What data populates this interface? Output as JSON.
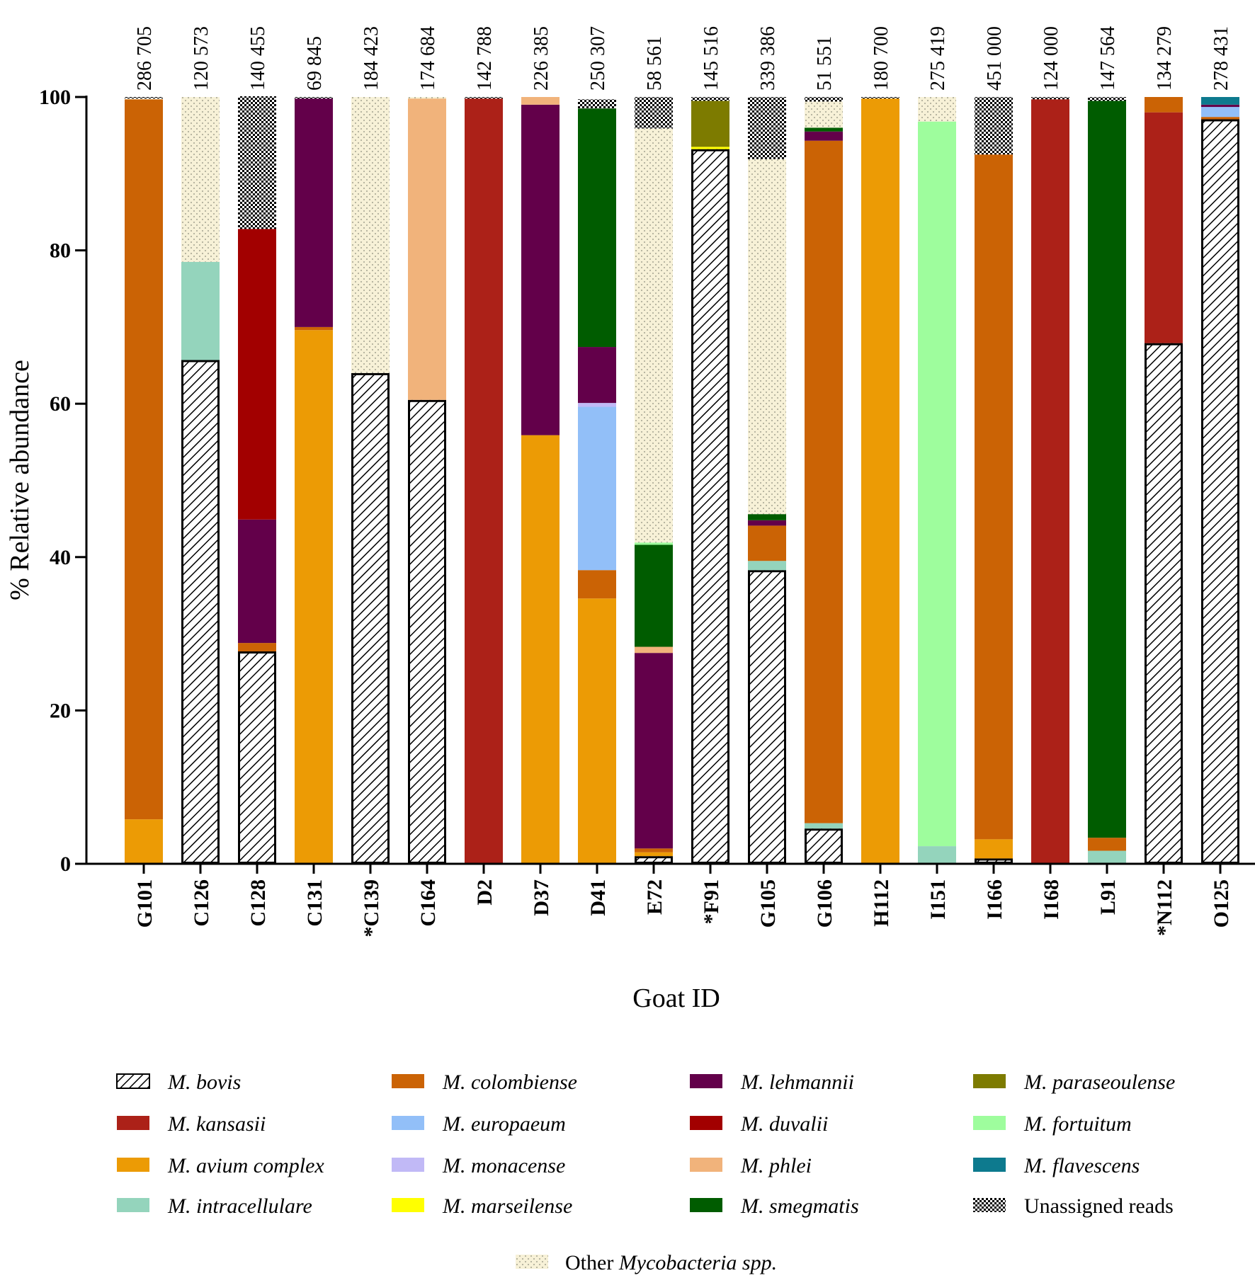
{
  "chart_data": {
    "type": "bar",
    "stacked": true,
    "title": "",
    "xlabel": "Goat ID",
    "ylabel": "% Relative abundance",
    "ylim": [
      0,
      100
    ],
    "yticks": [
      "0",
      "20",
      "40",
      "60",
      "80",
      "100"
    ],
    "categories": [
      "G101",
      "C126",
      "C128",
      "C131",
      "*C139",
      "C164",
      "D2",
      "D37",
      "D41",
      "E72",
      "*F91",
      "G105",
      "G106",
      "H112",
      "I151",
      "I166",
      "I168",
      "L91",
      "*N112",
      "O125"
    ],
    "read_counts": [
      "286 705",
      "120 573",
      "140 455",
      "69 845",
      "184 423",
      "174 684",
      "142 788",
      "226 385",
      "250 307",
      "58 561",
      "145 516",
      "339 386",
      "51 551",
      "180 700",
      "275 419",
      "451 000",
      "124 000",
      "147 564",
      "134 279",
      "278 431"
    ],
    "series": [
      {
        "name": "M. bovis",
        "key": "bovis",
        "color": "#ffffff",
        "pattern": "hatch",
        "values": [
          0,
          65.7,
          27.7,
          0,
          64.0,
          60.5,
          0,
          0,
          0,
          1.0,
          93.2,
          38.3,
          4.6,
          0,
          0,
          0.7,
          0,
          0,
          67.9,
          97.1
        ]
      },
      {
        "name": "M. kansasii",
        "key": "kansasii",
        "color": "#ac2118",
        "values": [
          0,
          0,
          0,
          0,
          0,
          0,
          99.8,
          0,
          0,
          0,
          0,
          0,
          0,
          0,
          0,
          0,
          99.7,
          0,
          30.1,
          0
        ]
      },
      {
        "name": "M. avium complex",
        "key": "avium",
        "color": "#ec9b05",
        "values": [
          5.8,
          0,
          0,
          69.6,
          0,
          0,
          0,
          55.9,
          34.6,
          0.5,
          0,
          0,
          0,
          99.8,
          0,
          2.5,
          0,
          0,
          0,
          0
        ]
      },
      {
        "name": "M. intracellulare",
        "key": "intracellulare",
        "color": "#94d4bc",
        "values": [
          0,
          12.8,
          0,
          0,
          0,
          0,
          0,
          0,
          0,
          0,
          0,
          1.2,
          0.7,
          0,
          2.3,
          0,
          0,
          1.7,
          0,
          0
        ]
      },
      {
        "name": "M. colombiense",
        "key": "colombiense",
        "color": "#cb6305",
        "values": [
          93.9,
          0,
          1.1,
          0.4,
          0,
          0,
          0,
          0,
          3.7,
          0.5,
          0,
          4.6,
          89.0,
          0,
          0,
          89.3,
          0,
          1.7,
          2.0,
          0.3
        ]
      },
      {
        "name": "M. europaeum",
        "key": "europaeum",
        "color": "#92bff8",
        "values": [
          0,
          0,
          0,
          0,
          0,
          0,
          0,
          0,
          21.3,
          0,
          0,
          0,
          0,
          0,
          0,
          0,
          0,
          0,
          0,
          1.3
        ]
      },
      {
        "name": "M. monacense",
        "key": "monacense",
        "color": "#c1b9f6",
        "values": [
          0,
          0,
          0,
          0,
          0,
          0,
          0,
          0,
          0.5,
          0,
          0,
          0,
          0,
          0,
          0,
          0,
          0,
          0,
          0,
          0
        ]
      },
      {
        "name": "M. marseilense",
        "key": "marseilense",
        "color": "#ffff00",
        "values": [
          0,
          0,
          0,
          0,
          0,
          0,
          0,
          0,
          0,
          0,
          0.3,
          0,
          0,
          0,
          0,
          0,
          0,
          0,
          0,
          0
        ]
      },
      {
        "name": "M. lehmannii",
        "key": "lehmannii",
        "color": "#63004a",
        "values": [
          0,
          0,
          16.1,
          29.8,
          0,
          0,
          0,
          43.1,
          7.3,
          25.5,
          0,
          0.7,
          1.2,
          0,
          0,
          0,
          0,
          0,
          0,
          0.3
        ]
      },
      {
        "name": "M. duvalii",
        "key": "duvalii",
        "color": "#a20000",
        "values": [
          0,
          0,
          37.9,
          0,
          0,
          0,
          0,
          0,
          0,
          0,
          0,
          0,
          0,
          0,
          0,
          0,
          0,
          0,
          0,
          0
        ]
      },
      {
        "name": "M. phlei",
        "key": "phlei",
        "color": "#f1b37b",
        "values": [
          0,
          0,
          0,
          0,
          0,
          39.3,
          0,
          1.0,
          0,
          0.8,
          0,
          0,
          0,
          0,
          0,
          0,
          0,
          0,
          0,
          0
        ]
      },
      {
        "name": "M. smegmatis",
        "key": "smegmatis",
        "color": "#005c00",
        "values": [
          0,
          0,
          0,
          0,
          0,
          0,
          0,
          0,
          31.1,
          13.3,
          0,
          0.8,
          0.5,
          0,
          0,
          0,
          0,
          96.1,
          0,
          0
        ]
      },
      {
        "name": "M. paraseoulense",
        "key": "paraseoulense",
        "color": "#7d7b00",
        "values": [
          0,
          0,
          0,
          0,
          0,
          0,
          0,
          0,
          0,
          0,
          6.0,
          0,
          0,
          0,
          0,
          0,
          0,
          0,
          0,
          0
        ]
      },
      {
        "name": "M. fortuitum",
        "key": "fortuitum",
        "color": "#9efd9d",
        "values": [
          0,
          0,
          0,
          0,
          0,
          0,
          0,
          0,
          0,
          0.3,
          0,
          0,
          0,
          0,
          94.5,
          0,
          0,
          0,
          0,
          0
        ]
      },
      {
        "name": "M. flavescens",
        "key": "flavescens",
        "color": "#0d7a8e",
        "values": [
          0,
          0,
          0,
          0,
          0,
          0,
          0,
          0,
          0,
          0,
          0,
          0,
          0,
          0,
          0,
          0,
          0,
          0,
          0,
          1.0
        ]
      },
      {
        "name": "Other Mycobacteria spp.",
        "key": "other",
        "color": "#f7f1d7",
        "pattern": "dots",
        "values": [
          0.1,
          21.5,
          0,
          0,
          36.0,
          0.2,
          0,
          0,
          0,
          54.0,
          0,
          46.3,
          3.4,
          0,
          3.2,
          0,
          0,
          0,
          0,
          0
        ]
      },
      {
        "name": "Unassigned reads",
        "key": "unassigned",
        "color": "#777777",
        "pattern": "checker",
        "values": [
          0.2,
          0,
          17.3,
          0.2,
          0,
          0,
          0.2,
          0,
          1.2,
          4.1,
          0.5,
          8.1,
          0.6,
          0.2,
          0,
          7.5,
          0.3,
          0.5,
          0,
          0
        ]
      }
    ],
    "legend": {
      "columns": [
        [
          "M. bovis",
          "M. kansasii",
          "M. avium complex",
          "M. intracellulare"
        ],
        [
          "M. colombiense",
          "M. europaeum",
          "M. monacense",
          "M. marseilense"
        ],
        [
          "M. lehmannii",
          "M. duvalii",
          "M. phlei",
          "M. smegmatis"
        ],
        [
          "M. paraseoulense",
          "M. fortuitum",
          "M. flavescens",
          "Unassigned reads"
        ]
      ],
      "footer_prefix": "Other",
      "footer_italic": "Mycobacteria spp."
    },
    "legend_position": "bottom"
  }
}
